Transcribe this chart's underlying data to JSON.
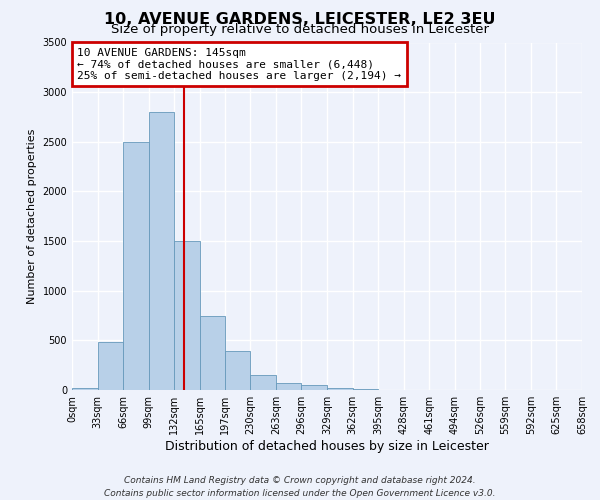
{
  "title": "10, AVENUE GARDENS, LEICESTER, LE2 3EU",
  "subtitle": "Size of property relative to detached houses in Leicester",
  "xlabel": "Distribution of detached houses by size in Leicester",
  "ylabel": "Number of detached properties",
  "bin_edges": [
    0,
    33,
    66,
    99,
    132,
    165,
    197,
    230,
    263,
    296,
    329,
    362,
    395,
    428,
    461,
    494,
    526,
    559,
    592,
    625,
    658
  ],
  "bar_heights": [
    20,
    480,
    2500,
    2800,
    1500,
    750,
    395,
    148,
    75,
    48,
    22,
    8,
    3,
    0,
    0,
    0,
    0,
    0,
    0,
    0
  ],
  "bar_color": "#b8d0e8",
  "bar_edge_color": "#6699bb",
  "vline_x": 145,
  "vline_color": "#cc0000",
  "annotation_text": "10 AVENUE GARDENS: 145sqm\n← 74% of detached houses are smaller (6,448)\n25% of semi-detached houses are larger (2,194) →",
  "annotation_box_color": "#cc0000",
  "ylim": [
    0,
    3500
  ],
  "tick_labels": [
    "0sqm",
    "33sqm",
    "66sqm",
    "99sqm",
    "132sqm",
    "165sqm",
    "197sqm",
    "230sqm",
    "263sqm",
    "296sqm",
    "329sqm",
    "362sqm",
    "395sqm",
    "428sqm",
    "461sqm",
    "494sqm",
    "526sqm",
    "559sqm",
    "592sqm",
    "625sqm",
    "658sqm"
  ],
  "footer_line1": "Contains HM Land Registry data © Crown copyright and database right 2024.",
  "footer_line2": "Contains public sector information licensed under the Open Government Licence v3.0.",
  "background_color": "#eef2fb",
  "grid_color": "#ffffff",
  "title_fontsize": 11.5,
  "subtitle_fontsize": 9.5,
  "axis_label_fontsize": 9,
  "tick_fontsize": 7,
  "annotation_fontsize": 8,
  "footer_fontsize": 6.5,
  "ylabel_fontsize": 8
}
